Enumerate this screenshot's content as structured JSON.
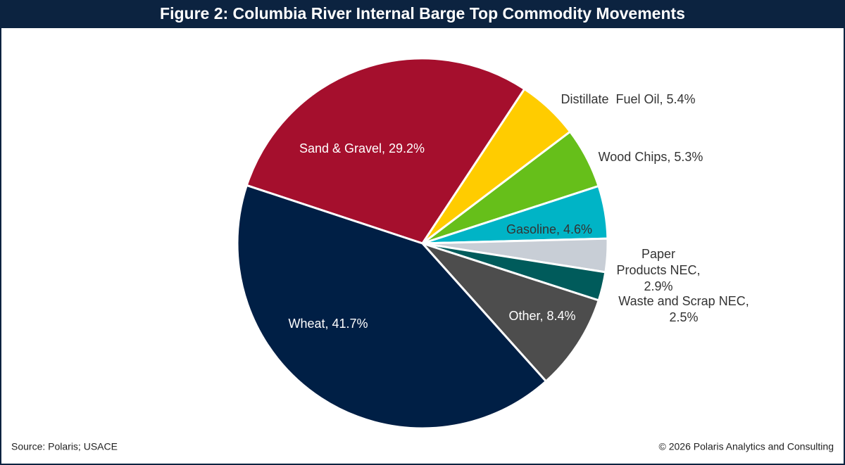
{
  "chart_data": {
    "type": "pie",
    "title": "Figure 2: Columbia River Internal Barge Top Commodity Movements",
    "values": [
      29.2,
      5.4,
      5.3,
      4.6,
      2.9,
      2.5,
      8.4,
      41.7
    ],
    "value_labels": [
      "Sand & Gravel, 29.2%",
      "Distillate  Fuel Oil, 5.4%",
      "Wood Chips, 5.3%",
      "Gasoline, 4.6%",
      [
        "Paper",
        "Products NEC,",
        "2.9%"
      ],
      [
        "Waste and Scrap NEC,",
        "2.5%"
      ],
      "Other, 8.4%",
      "Wheat, 41.7%"
    ],
    "colors": [
      "#a50f2d",
      "#ffcc00",
      "#66bf1a",
      "#00b4c6",
      "#c8ced6",
      "#005b5b",
      "#4d4d4d",
      "#001f45"
    ],
    "source": "Source: Polaris; USACE",
    "copyright": "© 2026 Polaris Analytics and Consulting"
  }
}
